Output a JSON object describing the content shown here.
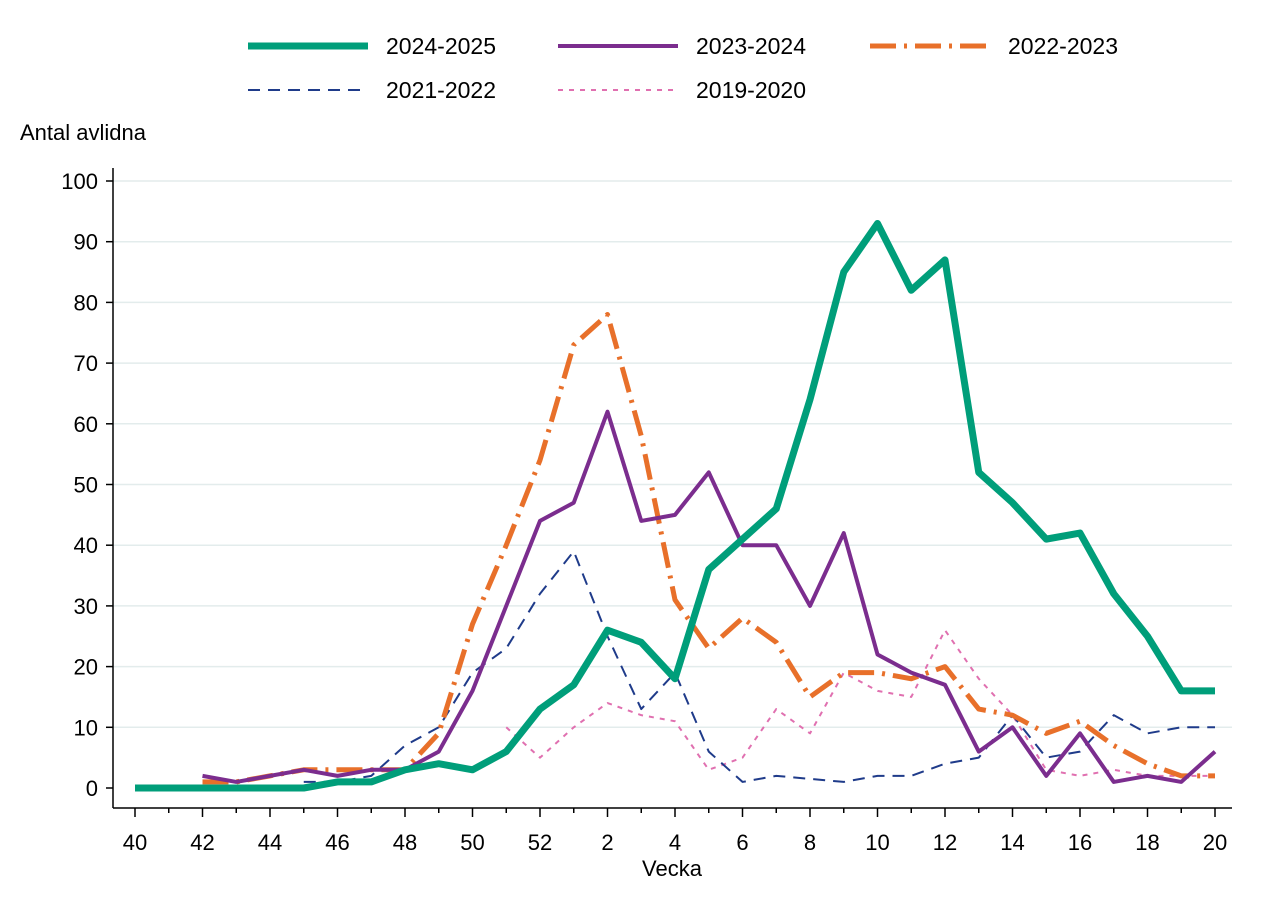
{
  "chart_data": {
    "type": "line",
    "xlabel": "Vecka",
    "ylabel": "Antal avlidna",
    "ylim": [
      0,
      100
    ],
    "yticks": [
      0,
      10,
      20,
      30,
      40,
      50,
      60,
      70,
      80,
      90,
      100
    ],
    "x": [
      40,
      41,
      42,
      43,
      44,
      45,
      46,
      47,
      48,
      49,
      50,
      51,
      52,
      1,
      2,
      3,
      4,
      5,
      6,
      7,
      8,
      9,
      10,
      11,
      12,
      13,
      14,
      15,
      16,
      17,
      18,
      19,
      20
    ],
    "xtick_labels": [
      "40",
      "42",
      "44",
      "46",
      "48",
      "50",
      "52",
      "2",
      "4",
      "6",
      "8",
      "10",
      "12",
      "14",
      "16",
      "18",
      "20"
    ],
    "grid": "horizontal",
    "legend_position": "top",
    "series": [
      {
        "name": "2024-2025",
        "color": "#009e7a",
        "style": "solid-thick",
        "values": [
          0,
          0,
          0,
          0,
          0,
          0,
          1,
          1,
          3,
          4,
          3,
          6,
          13,
          17,
          26,
          24,
          18,
          36,
          41,
          46,
          64,
          85,
          93,
          82,
          87,
          52,
          47,
          41,
          42,
          32,
          25,
          16,
          16
        ]
      },
      {
        "name": "2023-2024",
        "color": "#7b2d8e",
        "style": "solid",
        "values": [
          null,
          null,
          2,
          1,
          2,
          3,
          2,
          3,
          3,
          6,
          16,
          30,
          44,
          47,
          62,
          44,
          45,
          52,
          40,
          40,
          30,
          42,
          22,
          19,
          17,
          6,
          10,
          2,
          9,
          1,
          2,
          1,
          6
        ]
      },
      {
        "name": "2022-2023",
        "color": "#e8702a",
        "style": "dash-dot",
        "values": [
          null,
          null,
          1,
          1,
          2,
          3,
          3,
          3,
          3,
          9,
          27,
          40,
          54,
          73,
          78,
          58,
          31,
          23,
          28,
          24,
          15,
          19,
          19,
          18,
          20,
          13,
          12,
          9,
          11,
          7,
          4,
          2,
          2
        ]
      },
      {
        "name": "2021-2022",
        "color": "#1f3b8a",
        "style": "dashed",
        "values": [
          null,
          null,
          null,
          null,
          null,
          1,
          1,
          2,
          7,
          10,
          19,
          23,
          32,
          39,
          25,
          13,
          19,
          6,
          1,
          2,
          1.5,
          1,
          2,
          2,
          4,
          5,
          12,
          5,
          6,
          12,
          9,
          10,
          10
        ]
      },
      {
        "name": "2019-2020",
        "color": "#e070b0",
        "style": "dotted",
        "values": [
          null,
          null,
          null,
          null,
          null,
          null,
          null,
          null,
          null,
          null,
          null,
          10,
          5,
          10,
          14,
          12,
          11,
          3,
          5,
          13,
          9,
          19,
          16,
          15,
          26,
          18,
          12,
          3,
          2,
          3,
          2,
          2,
          2
        ]
      }
    ]
  }
}
